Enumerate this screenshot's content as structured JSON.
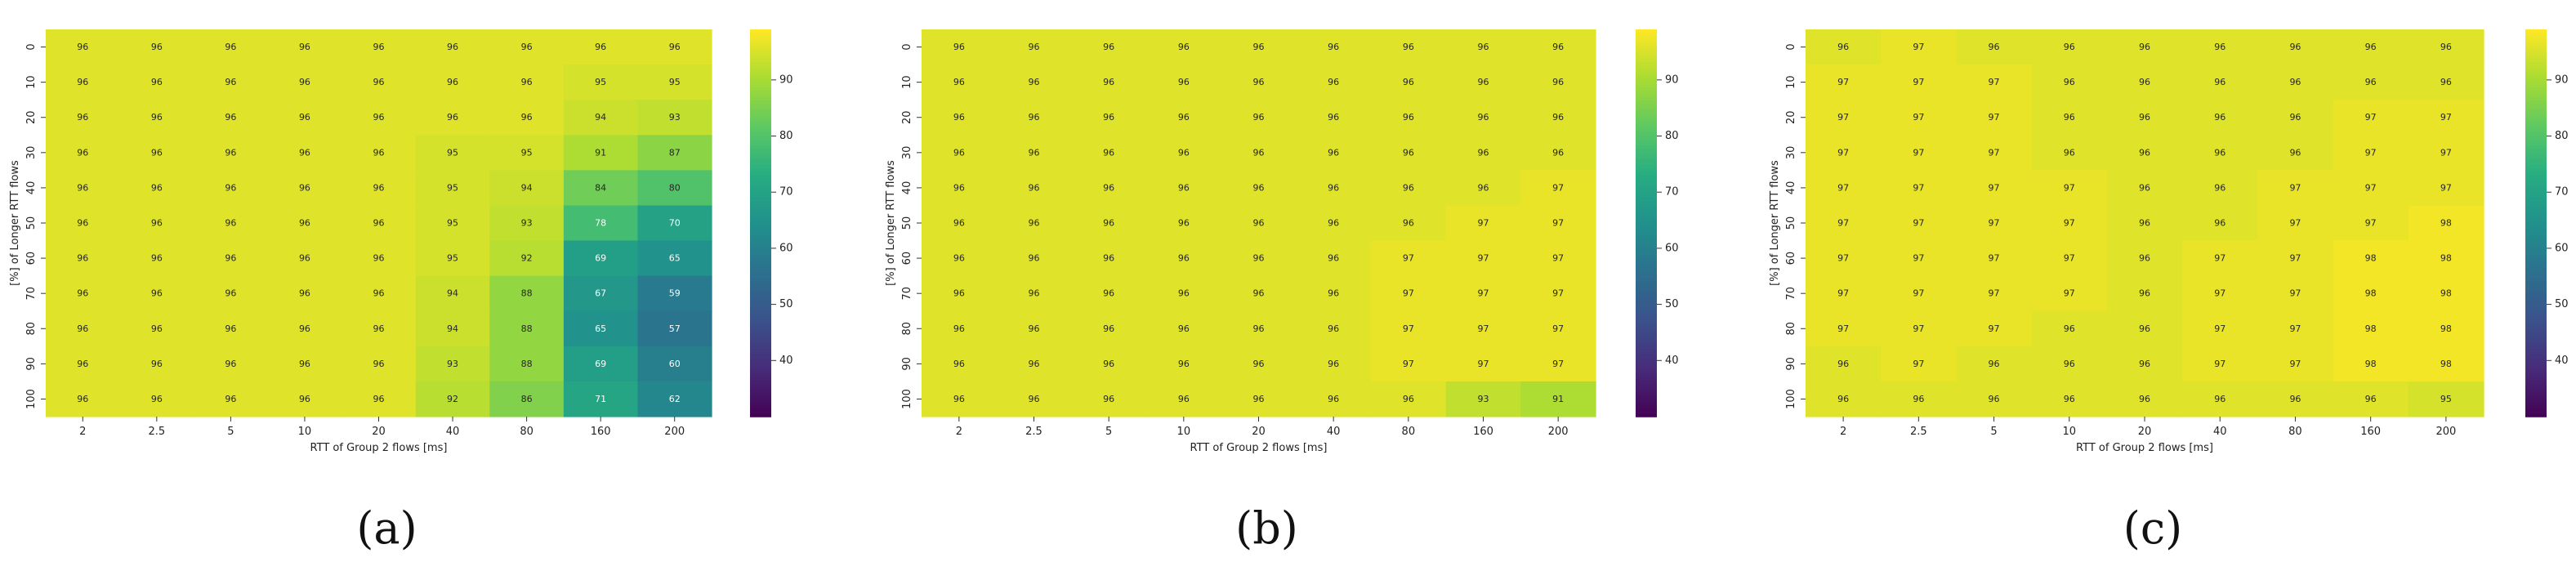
{
  "chart_data": [
    {
      "type": "heatmap",
      "caption": "(a)",
      "xlabel": "RTT of Group 2 flows [ms]",
      "ylabel": "[%] of Longer RTT flows",
      "x": [
        "2",
        "2.5",
        "5",
        "10",
        "20",
        "40",
        "80",
        "160",
        "200"
      ],
      "y": [
        "0",
        "10",
        "20",
        "30",
        "40",
        "50",
        "60",
        "70",
        "80",
        "90",
        "100"
      ],
      "values": [
        [
          96,
          96,
          96,
          96,
          96,
          96,
          96,
          96,
          96
        ],
        [
          96,
          96,
          96,
          96,
          96,
          96,
          96,
          95,
          95
        ],
        [
          96,
          96,
          96,
          96,
          96,
          96,
          96,
          94,
          93
        ],
        [
          96,
          96,
          96,
          96,
          96,
          95,
          95,
          91,
          87
        ],
        [
          96,
          96,
          96,
          96,
          96,
          95,
          94,
          84,
          80
        ],
        [
          96,
          96,
          96,
          96,
          96,
          95,
          93,
          78,
          70
        ],
        [
          96,
          96,
          96,
          96,
          96,
          95,
          92,
          69,
          65
        ],
        [
          96,
          96,
          96,
          96,
          96,
          94,
          88,
          67,
          59
        ],
        [
          96,
          96,
          96,
          96,
          96,
          94,
          88,
          65,
          57
        ],
        [
          96,
          96,
          96,
          96,
          96,
          93,
          88,
          69,
          60
        ],
        [
          96,
          96,
          96,
          96,
          96,
          92,
          86,
          71,
          62
        ]
      ],
      "colorbar_ticks": [
        40,
        50,
        60,
        70,
        80,
        90
      ],
      "color_range": [
        30,
        99
      ],
      "colormap": "viridis"
    },
    {
      "type": "heatmap",
      "caption": "(b)",
      "xlabel": "RTT of Group 2 flows [ms]",
      "ylabel": "[%] of Longer RTT flows",
      "x": [
        "2",
        "2.5",
        "5",
        "10",
        "20",
        "40",
        "80",
        "160",
        "200"
      ],
      "y": [
        "0",
        "10",
        "20",
        "30",
        "40",
        "50",
        "60",
        "70",
        "80",
        "90",
        "100"
      ],
      "values": [
        [
          96,
          96,
          96,
          96,
          96,
          96,
          96,
          96,
          96
        ],
        [
          96,
          96,
          96,
          96,
          96,
          96,
          96,
          96,
          96
        ],
        [
          96,
          96,
          96,
          96,
          96,
          96,
          96,
          96,
          96
        ],
        [
          96,
          96,
          96,
          96,
          96,
          96,
          96,
          96,
          96
        ],
        [
          96,
          96,
          96,
          96,
          96,
          96,
          96,
          96,
          97
        ],
        [
          96,
          96,
          96,
          96,
          96,
          96,
          96,
          97,
          97
        ],
        [
          96,
          96,
          96,
          96,
          96,
          96,
          97,
          97,
          97
        ],
        [
          96,
          96,
          96,
          96,
          96,
          96,
          97,
          97,
          97
        ],
        [
          96,
          96,
          96,
          96,
          96,
          96,
          97,
          97,
          97
        ],
        [
          96,
          96,
          96,
          96,
          96,
          96,
          97,
          97,
          97
        ],
        [
          96,
          96,
          96,
          96,
          96,
          96,
          96,
          93,
          91
        ]
      ],
      "colorbar_ticks": [
        40,
        50,
        60,
        70,
        80,
        90
      ],
      "color_range": [
        30,
        99
      ],
      "colormap": "viridis"
    },
    {
      "type": "heatmap",
      "caption": "(c)",
      "xlabel": "RTT of Group 2 flows [ms]",
      "ylabel": "[%] of Longer RTT flows",
      "x": [
        "2",
        "2.5",
        "5",
        "10",
        "20",
        "40",
        "80",
        "160",
        "200"
      ],
      "y": [
        "0",
        "10",
        "20",
        "30",
        "40",
        "50",
        "60",
        "70",
        "80",
        "90",
        "100"
      ],
      "values": [
        [
          96,
          97,
          96,
          96,
          96,
          96,
          96,
          96,
          96
        ],
        [
          97,
          97,
          97,
          96,
          96,
          96,
          96,
          96,
          96
        ],
        [
          97,
          97,
          97,
          96,
          96,
          96,
          96,
          97,
          97
        ],
        [
          97,
          97,
          97,
          96,
          96,
          96,
          96,
          97,
          97
        ],
        [
          97,
          97,
          97,
          97,
          96,
          96,
          97,
          97,
          97
        ],
        [
          97,
          97,
          97,
          97,
          96,
          96,
          97,
          97,
          98
        ],
        [
          97,
          97,
          97,
          97,
          96,
          97,
          97,
          98,
          98
        ],
        [
          97,
          97,
          97,
          97,
          96,
          97,
          97,
          98,
          98
        ],
        [
          97,
          97,
          97,
          96,
          96,
          97,
          97,
          98,
          98
        ],
        [
          96,
          97,
          96,
          96,
          96,
          97,
          97,
          98,
          98
        ],
        [
          96,
          96,
          96,
          96,
          96,
          96,
          96,
          96,
          95
        ]
      ],
      "colorbar_ticks": [
        40,
        50,
        60,
        70,
        80,
        90
      ],
      "color_range": [
        30,
        99
      ],
      "colormap": "viridis"
    }
  ]
}
